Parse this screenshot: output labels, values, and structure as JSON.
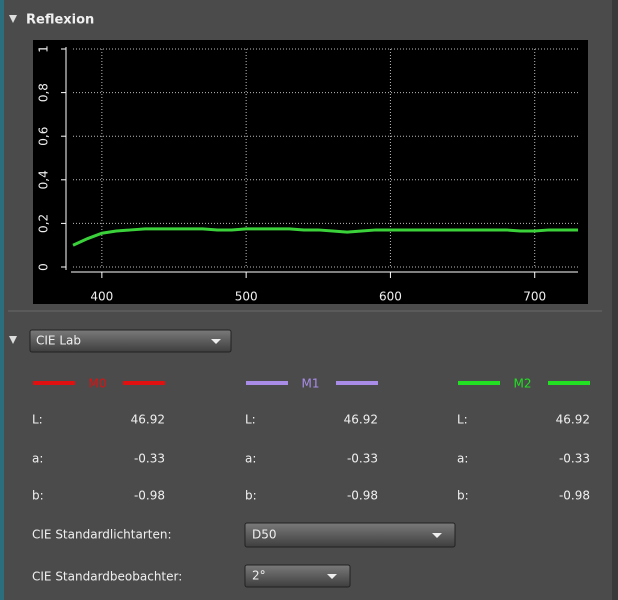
{
  "panel_title": "Reflexion",
  "chart_data": {
    "type": "line",
    "x": [
      380,
      390,
      400,
      410,
      420,
      430,
      440,
      450,
      460,
      470,
      480,
      490,
      500,
      510,
      520,
      530,
      540,
      550,
      560,
      570,
      580,
      590,
      600,
      610,
      620,
      630,
      640,
      650,
      660,
      670,
      680,
      690,
      700,
      710,
      720,
      730
    ],
    "series": [
      {
        "color": "#3ad13a",
        "values": [
          0.1,
          0.13,
          0.155,
          0.165,
          0.17,
          0.175,
          0.175,
          0.175,
          0.175,
          0.175,
          0.17,
          0.17,
          0.175,
          0.175,
          0.175,
          0.175,
          0.17,
          0.17,
          0.165,
          0.16,
          0.165,
          0.17,
          0.17,
          0.17,
          0.17,
          0.17,
          0.17,
          0.17,
          0.17,
          0.17,
          0.17,
          0.165,
          0.165,
          0.17,
          0.17,
          0.17
        ]
      }
    ],
    "xlim": [
      380,
      730
    ],
    "ylim": [
      0,
      1
    ],
    "xticks": [
      400,
      500,
      600,
      700
    ],
    "yticks": [
      0,
      {
        "value": 0.2,
        "label": "0,2"
      },
      {
        "value": 0.4,
        "label": "0,4"
      },
      {
        "value": 0.6,
        "label": "0,6"
      },
      {
        "value": 0.8,
        "label": "0,8"
      },
      1
    ],
    "grid": true
  },
  "color_space": "CIE Lab",
  "row_labels": [
    "L:",
    "a:",
    "b:"
  ],
  "measurements": [
    {
      "name": "M0",
      "color": "#e01010",
      "values": [
        "46.92",
        "-0.33",
        "-0.98"
      ]
    },
    {
      "name": "M1",
      "color": "#a98ce8",
      "values": [
        "46.92",
        "-0.33",
        "-0.98"
      ]
    },
    {
      "name": "M2",
      "color": "#22e022",
      "values": [
        "46.92",
        "-0.33",
        "-0.98"
      ]
    }
  ],
  "illuminant": {
    "label": "CIE Standardlichtarten:",
    "value": "D50"
  },
  "observer": {
    "label": "CIE Standardbeobachter:",
    "value": "2°"
  }
}
